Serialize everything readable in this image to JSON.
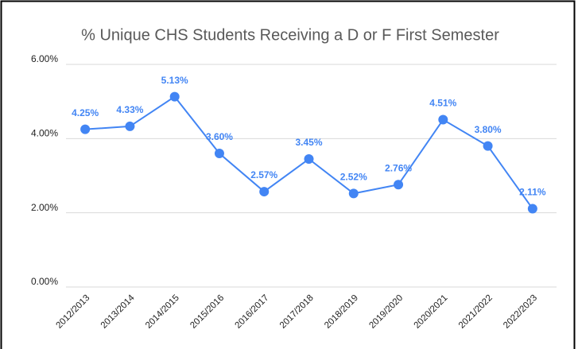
{
  "chart_data": {
    "type": "line",
    "title": "% Unique CHS Students Receiving a D or F First Semester",
    "categories": [
      "2012/2013",
      "2013/2014",
      "2014/2015",
      "2015/2016",
      "2016/2017",
      "2017/2018",
      "2018/2019",
      "2019/2020",
      "2020/2021",
      "2021/2022",
      "2022/2023"
    ],
    "series": [
      {
        "name": "% Unique CHS Students Receiving a D or F",
        "color": "#4285f4",
        "values": [
          4.25,
          4.33,
          5.13,
          3.6,
          2.57,
          3.45,
          2.52,
          2.76,
          4.51,
          3.8,
          2.11
        ],
        "value_labels": [
          "4.25%",
          "4.33%",
          "5.13%",
          "3.60%",
          "2.57%",
          "3.45%",
          "2.52%",
          "2.76%",
          "4.51%",
          "3.80%",
          "2.11%"
        ]
      }
    ],
    "ylim": [
      0,
      6
    ],
    "yticks": [
      {
        "value": 0,
        "label": "0.00%"
      },
      {
        "value": 2,
        "label": "2.00%"
      },
      {
        "value": 4,
        "label": "4.00%"
      },
      {
        "value": 6,
        "label": "6.00%"
      }
    ],
    "grid": true
  }
}
